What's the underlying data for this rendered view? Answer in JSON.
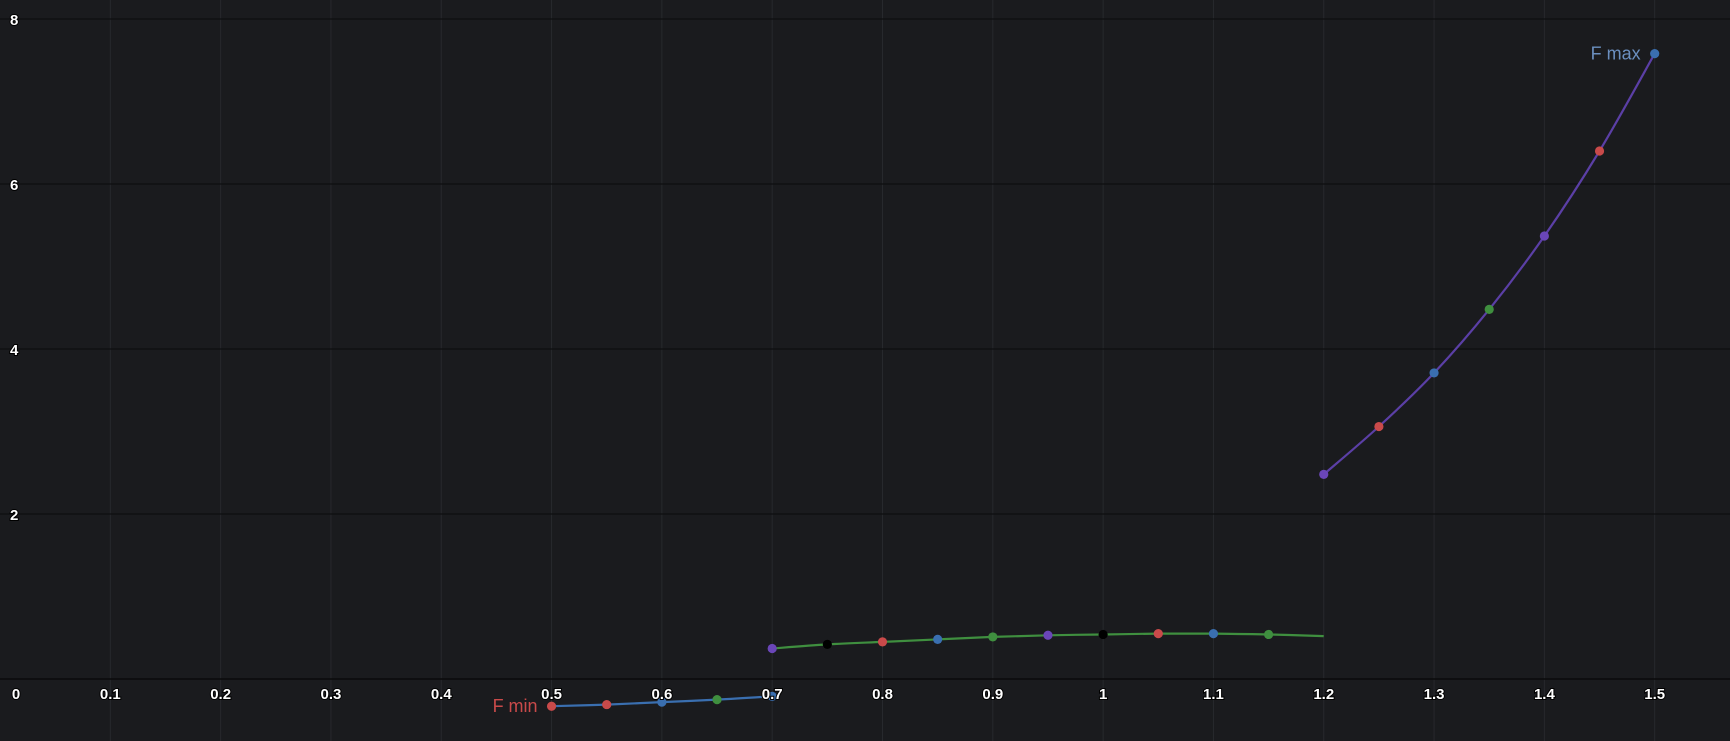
{
  "chart_data": {
    "type": "line",
    "grid": true,
    "xlim": [
      0,
      1.6
    ],
    "ylim": [
      -0.8,
      8
    ],
    "x_ticks": [
      "0",
      "0.1",
      "0.2",
      "0.3",
      "0.4",
      "0.5",
      "0.6",
      "0.7",
      "0.8",
      "0.9",
      "1",
      "1.1",
      "1.2",
      "1.3",
      "1.4",
      "1.5"
    ],
    "y_ticks": [
      "2",
      "4",
      "6",
      "8"
    ],
    "series": [
      {
        "color": "#3a6fb0",
        "line_color": "#3a6fb0",
        "x": [
          0.5,
          0.55,
          0.6,
          0.65,
          0.7
        ],
        "y": [
          -0.33,
          -0.31,
          -0.28,
          -0.25,
          -0.21
        ],
        "point_colors": [
          "#c94a4a",
          "#c94a4a",
          "#3a6fb0",
          "#3f8f3f",
          "#3a6fb0"
        ]
      },
      {
        "color": "#3f8f3f",
        "line_color": "#3f8f3f",
        "x": [
          0.7,
          0.75,
          0.8,
          0.85,
          0.9,
          0.95,
          1.0,
          1.05,
          1.1,
          1.15,
          1.2
        ],
        "y": [
          0.37,
          0.42,
          0.45,
          0.48,
          0.51,
          0.53,
          0.54,
          0.55,
          0.55,
          0.54,
          0.52
        ],
        "point_colors": [
          "#6a46b8",
          "#000000",
          "#c94a4a",
          "#3a6fb0",
          "#3f8f3f",
          "#6a46b8",
          "#000000",
          "#c94a4a",
          "#3a6fb0",
          "#3f8f3f",
          null
        ]
      },
      {
        "color": "#6a46b8",
        "line_color": "#5b3fa6",
        "x": [
          1.2,
          1.25,
          1.3,
          1.35,
          1.4,
          1.45,
          1.5
        ],
        "y": [
          2.48,
          3.06,
          3.71,
          4.48,
          5.37,
          6.4,
          7.58
        ],
        "point_colors": [
          "#6a46b8",
          "#c94a4a",
          "#3a6fb0",
          "#3f8f3f",
          "#6a46b8",
          "#c94a4a",
          "#3a6fb0"
        ]
      }
    ],
    "annotations": [
      {
        "text": "F min",
        "x": 0.5,
        "y": -0.33,
        "color": "#c94a4a"
      },
      {
        "text": "F max",
        "x": 1.5,
        "y": 7.58,
        "color": "#6b8fbf"
      }
    ]
  }
}
